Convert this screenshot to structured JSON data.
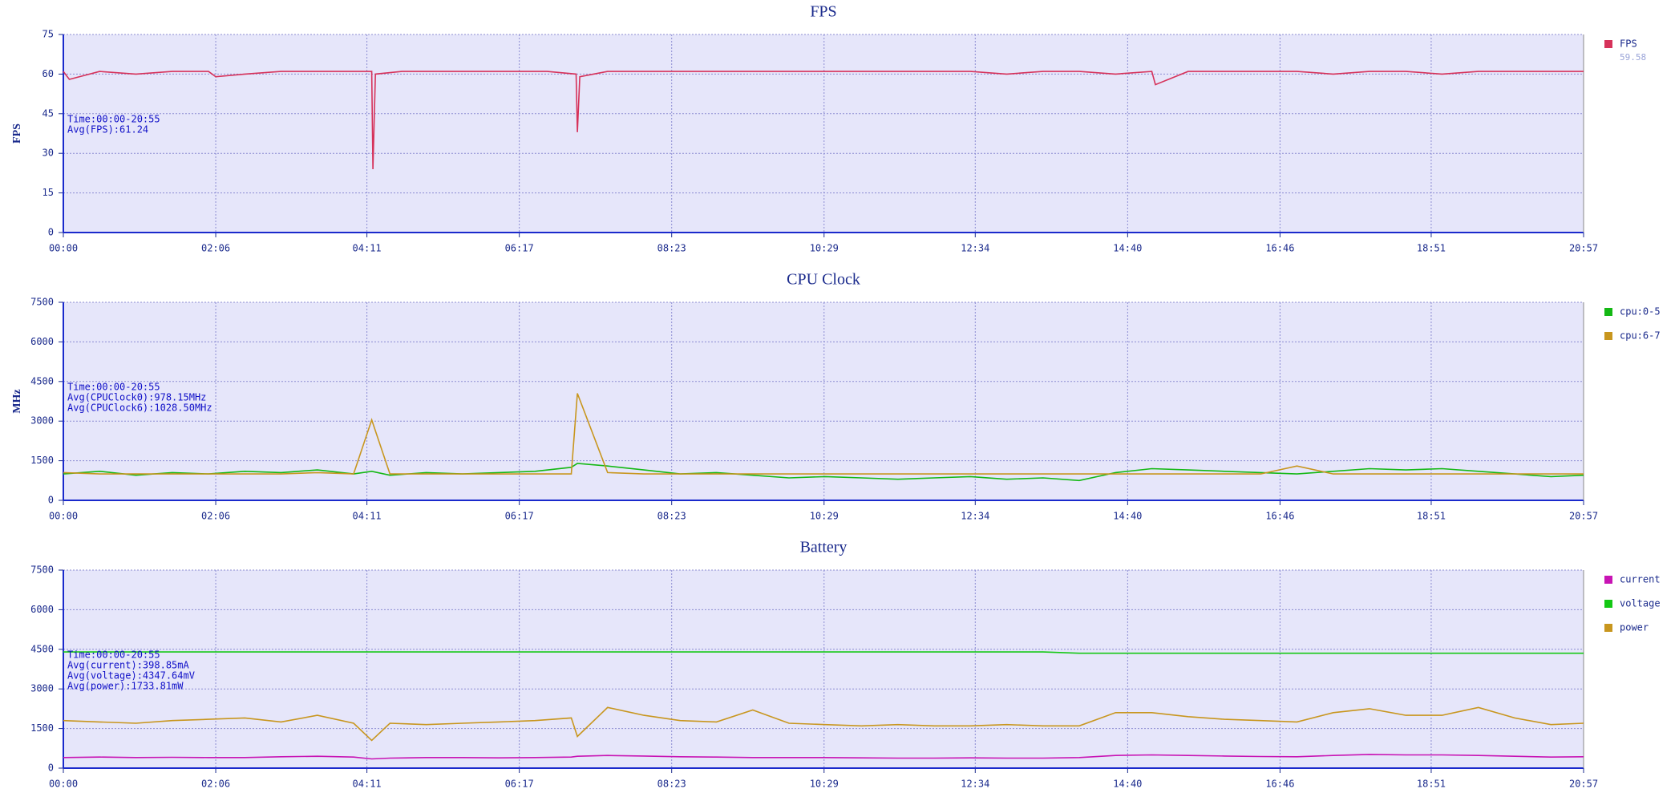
{
  "chart_data": [
    {
      "type": "line",
      "title": "FPS",
      "ylabel": "FPS",
      "annotations": [
        "Time:00:00-20:55",
        "Avg(FPS):61.24"
      ],
      "x": [
        0,
        5,
        30,
        60,
        90,
        120,
        126,
        150,
        180,
        210,
        240,
        255,
        256,
        258,
        280,
        310,
        340,
        370,
        400,
        424,
        425,
        427,
        450,
        480,
        510,
        540,
        570,
        600,
        630,
        660,
        690,
        720,
        750,
        780,
        810,
        840,
        870,
        900,
        903,
        930,
        960,
        990,
        1020,
        1050,
        1080,
        1110,
        1140,
        1170,
        1200,
        1257
      ],
      "series": [
        {
          "name": "FPS",
          "legend_subtext": "59.58",
          "color": "#d6325a",
          "values": [
            61,
            58,
            61,
            60,
            61,
            61,
            59,
            60,
            61,
            61,
            61,
            61,
            24,
            60,
            61,
            61,
            61,
            61,
            61,
            60,
            38,
            59,
            61,
            61,
            61,
            61,
            61,
            61,
            61,
            61,
            61,
            61,
            61,
            60,
            61,
            61,
            60,
            61,
            56,
            61,
            61,
            61,
            61,
            60,
            61,
            61,
            60,
            61,
            61,
            61
          ]
        }
      ],
      "xlim": [
        0,
        1257
      ],
      "xticks": [
        {
          "value": 0,
          "label": "00:00"
        },
        {
          "value": 126,
          "label": "02:06"
        },
        {
          "value": 251,
          "label": "04:11"
        },
        {
          "value": 377,
          "label": "06:17"
        },
        {
          "value": 503,
          "label": "08:23"
        },
        {
          "value": 629,
          "label": "10:29"
        },
        {
          "value": 754,
          "label": "12:34"
        },
        {
          "value": 880,
          "label": "14:40"
        },
        {
          "value": 1006,
          "label": "16:46"
        },
        {
          "value": 1131,
          "label": "18:51"
        },
        {
          "value": 1257,
          "label": "20:57"
        }
      ],
      "ylim": [
        0,
        75
      ],
      "yticks": [
        0,
        15,
        30,
        45,
        60,
        75
      ],
      "grid": true
    },
    {
      "type": "line",
      "title": "CPU Clock",
      "ylabel": "MHz",
      "annotations": [
        "Time:00:00-20:55",
        "Avg(CPUClock0):978.15MHz",
        "Avg(CPUClock6):1028.50MHz"
      ],
      "x": [
        0,
        30,
        60,
        90,
        120,
        150,
        180,
        210,
        240,
        255,
        270,
        300,
        330,
        360,
        390,
        420,
        425,
        450,
        480,
        510,
        540,
        570,
        600,
        630,
        660,
        690,
        720,
        750,
        780,
        810,
        840,
        870,
        900,
        930,
        960,
        990,
        1020,
        1050,
        1080,
        1110,
        1140,
        1170,
        1200,
        1230,
        1257
      ],
      "series": [
        {
          "name": "cpu:0-5",
          "color": "#14b814",
          "values": [
            1000,
            1100,
            950,
            1050,
            1000,
            1100,
            1050,
            1150,
            1000,
            1100,
            950,
            1050,
            1000,
            1050,
            1100,
            1250,
            1400,
            1300,
            1150,
            1000,
            1050,
            950,
            850,
            900,
            850,
            800,
            850,
            900,
            800,
            850,
            750,
            1050,
            1200,
            1150,
            1100,
            1050,
            1000,
            1100,
            1200,
            1150,
            1200,
            1100,
            1000,
            900,
            950
          ]
        },
        {
          "name": "cpu:6-7",
          "color": "#c8961e",
          "values": [
            1050,
            1000,
            1000,
            1000,
            1000,
            1000,
            1000,
            1050,
            1000,
            3050,
            1000,
            1000,
            1000,
            1000,
            1000,
            1000,
            4050,
            1050,
            1000,
            1000,
            1000,
            1000,
            1000,
            1000,
            1000,
            1000,
            1000,
            1000,
            1000,
            1000,
            1000,
            1000,
            1000,
            1000,
            1000,
            1000,
            1300,
            1000,
            1000,
            1000,
            1000,
            1000,
            1000,
            1000,
            1000
          ]
        }
      ],
      "xlim": [
        0,
        1257
      ],
      "xticks": [
        {
          "value": 0,
          "label": "00:00"
        },
        {
          "value": 126,
          "label": "02:06"
        },
        {
          "value": 251,
          "label": "04:11"
        },
        {
          "value": 377,
          "label": "06:17"
        },
        {
          "value": 503,
          "label": "08:23"
        },
        {
          "value": 629,
          "label": "10:29"
        },
        {
          "value": 754,
          "label": "12:34"
        },
        {
          "value": 880,
          "label": "14:40"
        },
        {
          "value": 1006,
          "label": "16:46"
        },
        {
          "value": 1131,
          "label": "18:51"
        },
        {
          "value": 1257,
          "label": "20:57"
        }
      ],
      "ylim": [
        0,
        7500
      ],
      "yticks": [
        0,
        1500,
        3000,
        4500,
        6000,
        7500
      ],
      "grid": true
    },
    {
      "type": "line",
      "title": "Battery",
      "annotations": [
        "Time:00:00-20:55",
        "Avg(current):398.85mA",
        "Avg(voltage):4347.64mV",
        "Avg(power):1733.81mW"
      ],
      "x": [
        0,
        30,
        60,
        90,
        120,
        150,
        180,
        210,
        240,
        255,
        270,
        300,
        330,
        360,
        390,
        420,
        425,
        450,
        480,
        510,
        540,
        570,
        600,
        630,
        660,
        690,
        720,
        750,
        780,
        810,
        840,
        870,
        900,
        930,
        960,
        990,
        1020,
        1050,
        1080,
        1110,
        1140,
        1170,
        1200,
        1230,
        1257
      ],
      "series": [
        {
          "name": "current",
          "color": "#c814b4",
          "values": [
            400,
            420,
            400,
            410,
            400,
            400,
            430,
            450,
            420,
            350,
            380,
            400,
            400,
            390,
            400,
            420,
            450,
            480,
            460,
            430,
            420,
            400,
            400,
            400,
            390,
            380,
            380,
            390,
            380,
            380,
            400,
            480,
            500,
            480,
            460,
            440,
            430,
            480,
            520,
            500,
            500,
            480,
            450,
            420,
            430
          ]
        },
        {
          "name": "voltage",
          "color": "#14c814",
          "values": [
            4400,
            4400,
            4400,
            4400,
            4400,
            4400,
            4400,
            4400,
            4400,
            4400,
            4400,
            4400,
            4400,
            4400,
            4400,
            4400,
            4400,
            4400,
            4400,
            4400,
            4400,
            4400,
            4400,
            4400,
            4400,
            4400,
            4400,
            4400,
            4400,
            4400,
            4350,
            4350,
            4350,
            4350,
            4350,
            4350,
            4350,
            4350,
            4350,
            4350,
            4350,
            4350,
            4350,
            4350,
            4350
          ]
        },
        {
          "name": "power",
          "color": "#c8961e",
          "values": [
            1800,
            1750,
            1700,
            1800,
            1850,
            1900,
            1750,
            2000,
            1700,
            1050,
            1700,
            1650,
            1700,
            1750,
            1800,
            1900,
            1200,
            2300,
            2000,
            1800,
            1750,
            2200,
            1700,
            1650,
            1600,
            1650,
            1600,
            1600,
            1650,
            1600,
            1600,
            2100,
            2100,
            1950,
            1850,
            1800,
            1750,
            2100,
            2250,
            2000,
            2000,
            2300,
            1900,
            1650,
            1700
          ]
        }
      ],
      "xlim": [
        0,
        1257
      ],
      "xticks": [
        {
          "value": 0,
          "label": "00:00"
        },
        {
          "value": 126,
          "label": "02:06"
        },
        {
          "value": 251,
          "label": "04:11"
        },
        {
          "value": 377,
          "label": "06:17"
        },
        {
          "value": 503,
          "label": "08:23"
        },
        {
          "value": 629,
          "label": "10:29"
        },
        {
          "value": 754,
          "label": "12:34"
        },
        {
          "value": 880,
          "label": "14:40"
        },
        {
          "value": 1006,
          "label": "16:46"
        },
        {
          "value": 1131,
          "label": "18:51"
        },
        {
          "value": 1257,
          "label": "20:57"
        }
      ],
      "ylim": [
        0,
        7500
      ],
      "yticks": [
        0,
        1500,
        3000,
        4500,
        6000,
        7500
      ],
      "grid": true
    }
  ]
}
